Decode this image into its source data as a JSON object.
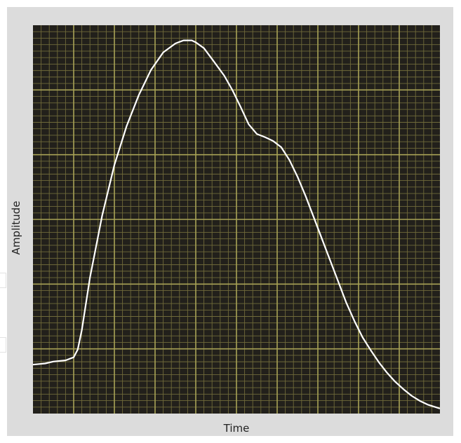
{
  "chart_data": {
    "type": "line",
    "title": "",
    "xlabel": "Time",
    "ylabel": "Amplitude",
    "xlim": [
      0,
      100
    ],
    "ylim": [
      0,
      100
    ],
    "grid": true,
    "series": [
      {
        "color": "#ffffff",
        "x": [
          0,
          3,
          5,
          8,
          10,
          11,
          12,
          14,
          17,
          20,
          23,
          26,
          29,
          32,
          35,
          37,
          39,
          40,
          42,
          44,
          47,
          49,
          51,
          53,
          55,
          57,
          59,
          61,
          63,
          65,
          67,
          69,
          71,
          73,
          75,
          77,
          79,
          81,
          83,
          85,
          87,
          89,
          91,
          93,
          95,
          97,
          100
        ],
        "y": [
          12.6,
          12.9,
          13.4,
          13.7,
          14.5,
          16.5,
          21.5,
          35,
          51,
          64,
          74,
          82,
          88.5,
          93,
          95.3,
          96.1,
          96.1,
          95.6,
          94.1,
          91.3,
          87,
          83.3,
          79,
          74.5,
          72,
          71.2,
          70.2,
          68.6,
          65.3,
          61,
          56,
          50.5,
          45,
          39.5,
          34,
          28.5,
          23.8,
          19.6,
          16.3,
          13.2,
          10.5,
          8.2,
          6.3,
          4.6,
          3.3,
          2.3,
          1.3
        ]
      }
    ]
  },
  "colors": {
    "plot_background": "#22201b",
    "grid_major": "#a8a256",
    "grid_minor": "#6f6a3a",
    "frame_background": "#dcdcdc"
  }
}
